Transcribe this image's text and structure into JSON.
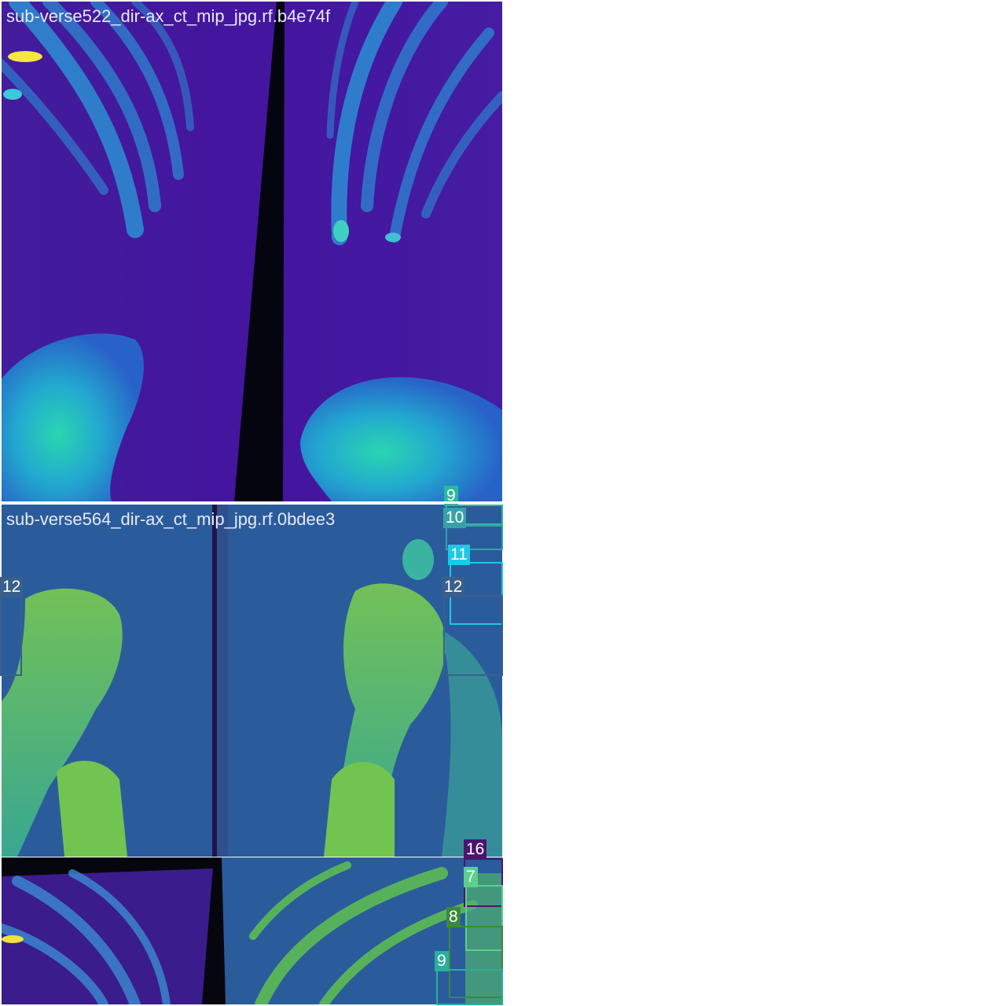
{
  "tiles": [
    {
      "filename": "sub-verse522_dir-ax_ct_mip_jpg.rf.b4e74f"
    },
    {
      "filename": "sub-verse564_dir-ax_ct_mip_jpg.rf.0bdee3"
    },
    {
      "filename": ""
    }
  ],
  "annotations": {
    "label_9_top": "9",
    "label_10": "10",
    "label_11": "11",
    "label_12_right": "12",
    "label_12_left": "12",
    "label_16": "16",
    "label_7": "7",
    "label_8": "8",
    "label_9_bottom": "9"
  },
  "colors": {
    "label_9_top": "#2cb89f",
    "label_10": "#3aa0a8",
    "label_11": "#1ec8e8",
    "label_12_right": "#3a5f8a",
    "label_12_left": "#3a5f8a",
    "label_16": "#4b1470",
    "label_7": "#5ccf8c",
    "label_8": "#3a8a3a",
    "label_9_bottom": "#27b09c"
  }
}
